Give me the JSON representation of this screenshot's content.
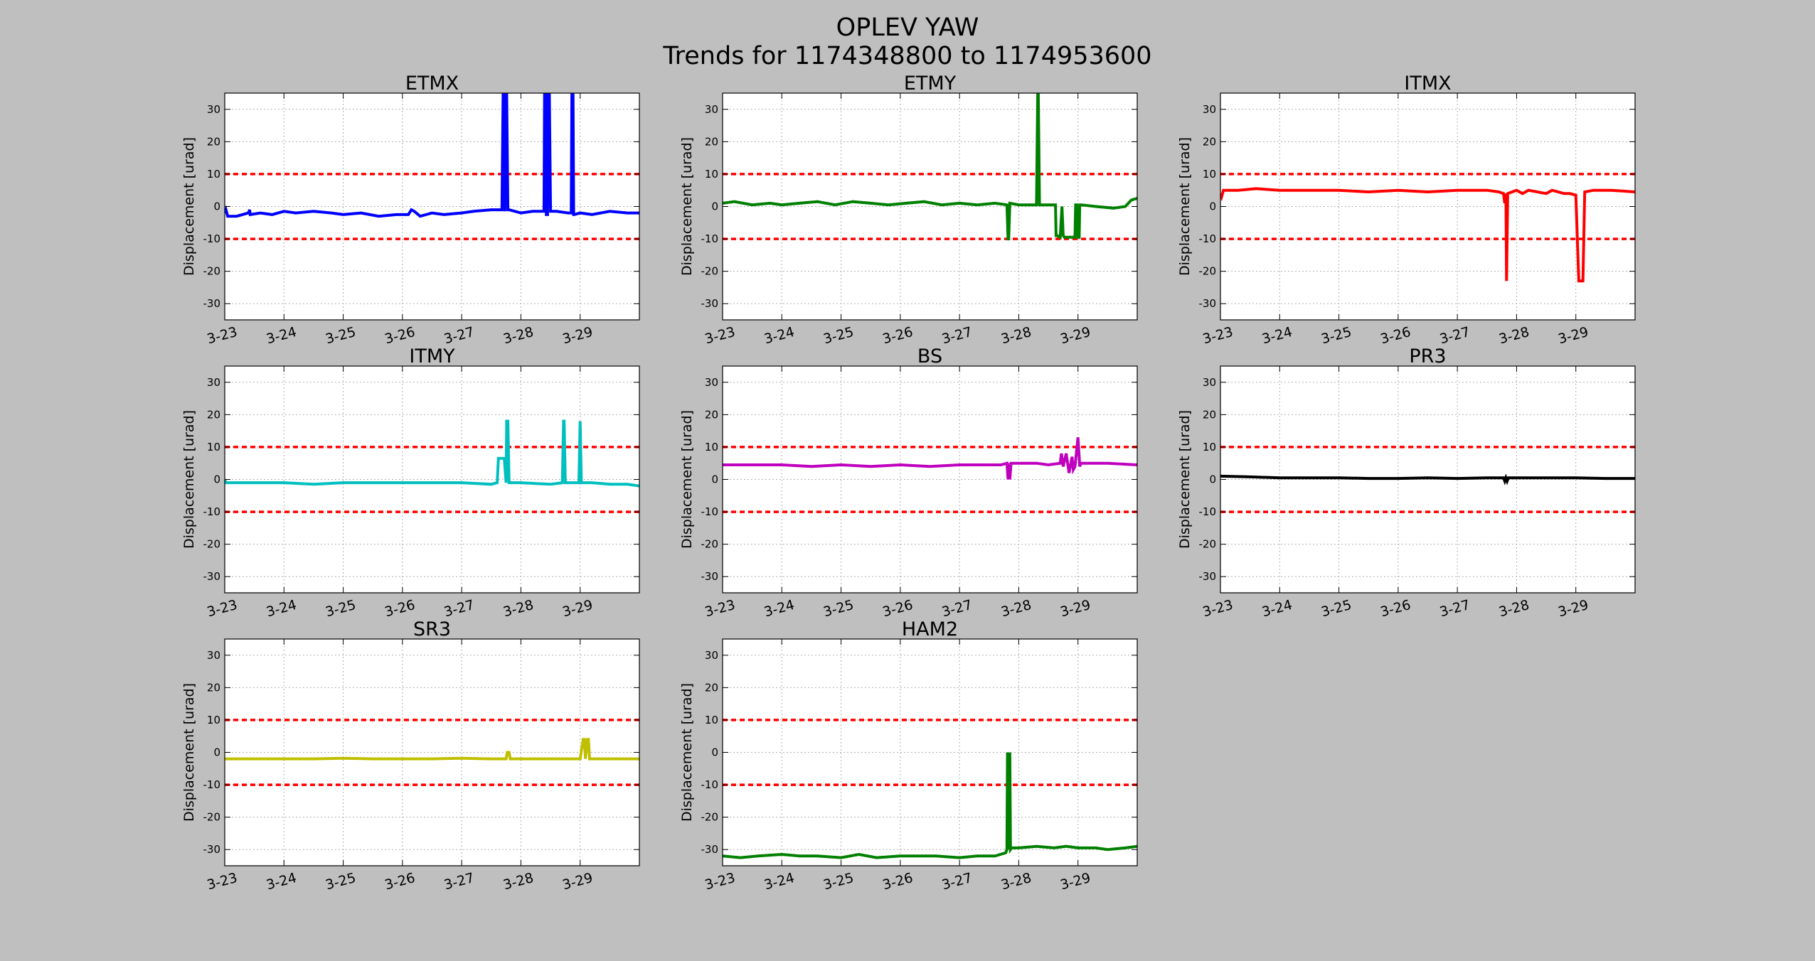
{
  "figure": {
    "title": "OPLEV YAW",
    "subtitle": "Trends for 1174348800 to 1174953600"
  },
  "chart_data": [
    {
      "type": "line",
      "title": "ETMX",
      "ylabel": "Displacement [urad]",
      "xlim": [
        0,
        7
      ],
      "ylim": [
        -35,
        35
      ],
      "yticks": [
        -30,
        -20,
        -10,
        0,
        10,
        20,
        30
      ],
      "xticks": [
        0,
        1,
        2,
        3,
        4,
        5,
        6
      ],
      "xticklabels": [
        "3-23",
        "3-24",
        "3-25",
        "3-26",
        "3-27",
        "3-28",
        "3-29"
      ],
      "grid": true,
      "thresholds": [
        10,
        -10
      ],
      "threshold_color": "#ff0000",
      "color": "#0000ff",
      "x": [
        0,
        0.02,
        0.05,
        0.2,
        0.4,
        0.42,
        0.43,
        0.6,
        0.8,
        1.0,
        1.2,
        1.5,
        1.8,
        2.0,
        2.3,
        2.6,
        2.9,
        3.1,
        3.15,
        3.2,
        3.3,
        3.5,
        3.7,
        4.0,
        4.2,
        4.5,
        4.68,
        4.7,
        4.71,
        4.73,
        4.74,
        4.76,
        4.78,
        4.8,
        5.0,
        5.2,
        5.39,
        5.4,
        5.42,
        5.43,
        5.45,
        5.46,
        5.48,
        5.5,
        5.6,
        5.8,
        5.85,
        5.86,
        5.88,
        5.89,
        5.9,
        6.0,
        6.2,
        6.5,
        6.8,
        7.0
      ],
      "y": [
        -2,
        -1,
        -3,
        -3,
        -2,
        -1,
        -2.5,
        -2,
        -2.5,
        -1.5,
        -2,
        -1.5,
        -2,
        -2.5,
        -2,
        -3,
        -2.5,
        -2.5,
        -1,
        -1.5,
        -3,
        -2,
        -2.5,
        -2,
        -1.5,
        -1,
        -1,
        35,
        35,
        -1.5,
        35,
        35,
        -1,
        -1,
        -2,
        -1.5,
        -1.5,
        35,
        35,
        -2.5,
        -2.5,
        35,
        35,
        -1.5,
        -1.5,
        -2,
        -2,
        35,
        35,
        -2.5,
        -2.5,
        -2,
        -2.5,
        -1.5,
        -2,
        -2
      ]
    },
    {
      "type": "line",
      "title": "ETMY",
      "ylabel": "Displacement [urad]",
      "xlim": [
        0,
        7
      ],
      "ylim": [
        -35,
        35
      ],
      "yticks": [
        -30,
        -20,
        -10,
        0,
        10,
        20,
        30
      ],
      "xticks": [
        0,
        1,
        2,
        3,
        4,
        5,
        6
      ],
      "xticklabels": [
        "3-23",
        "3-24",
        "3-25",
        "3-26",
        "3-27",
        "3-28",
        "3-29"
      ],
      "grid": true,
      "thresholds": [
        10,
        -10
      ],
      "threshold_color": "#ff0000",
      "color": "#008000",
      "x": [
        0,
        0.2,
        0.5,
        0.8,
        1.0,
        1.3,
        1.6,
        1.9,
        2.2,
        2.5,
        2.8,
        3.1,
        3.4,
        3.7,
        4.0,
        4.3,
        4.6,
        4.8,
        4.82,
        4.83,
        4.85,
        5.0,
        5.3,
        5.32,
        5.33,
        5.35,
        5.5,
        5.62,
        5.63,
        5.65,
        5.7,
        5.73,
        5.75,
        5.77,
        5.8,
        5.95,
        5.96,
        5.98,
        6.0,
        6.02,
        6.03,
        6.05,
        6.3,
        6.6,
        6.8,
        6.9,
        7.0
      ],
      "y": [
        1,
        1.5,
        0.5,
        1,
        0.5,
        1,
        1.5,
        0.5,
        1.5,
        1,
        0.5,
        1,
        1.5,
        0.5,
        1,
        0.5,
        1,
        0.5,
        -10,
        -10,
        1,
        0.5,
        0.5,
        35,
        35,
        0.5,
        0.5,
        0.5,
        -9,
        -9,
        -9.5,
        0,
        -9,
        -9.5,
        -9.5,
        -9.5,
        0.5,
        0.5,
        -9.5,
        -9.5,
        0.5,
        0.5,
        0,
        -0.5,
        0,
        2,
        2.5
      ]
    },
    {
      "type": "line",
      "title": "ITMX",
      "ylabel": "Displacement [urad]",
      "xlim": [
        0,
        7
      ],
      "ylim": [
        -35,
        35
      ],
      "yticks": [
        -30,
        -20,
        -10,
        0,
        10,
        20,
        30
      ],
      "xticks": [
        0,
        1,
        2,
        3,
        4,
        5,
        6
      ],
      "xticklabels": [
        "3-23",
        "3-24",
        "3-25",
        "3-26",
        "3-27",
        "3-28",
        "3-29"
      ],
      "grid": true,
      "thresholds": [
        10,
        -10
      ],
      "threshold_color": "#ff0000",
      "color": "#ff0000",
      "x": [
        0,
        0.02,
        0.05,
        0.3,
        0.6,
        1.0,
        1.5,
        2.0,
        2.5,
        3.0,
        3.5,
        4.0,
        4.5,
        4.7,
        4.78,
        4.8,
        4.82,
        4.83,
        4.85,
        5.0,
        5.1,
        5.2,
        5.5,
        5.6,
        5.8,
        5.9,
        6.0,
        6.05,
        6.08,
        6.1,
        6.12,
        6.15,
        6.3,
        6.6,
        7.0
      ],
      "y": [
        4,
        3,
        5,
        5,
        5.5,
        5,
        5,
        5,
        4.5,
        5,
        4.5,
        5,
        5,
        4.5,
        4,
        1,
        4,
        -23,
        4,
        5,
        4,
        5,
        4,
        5,
        4,
        4,
        3.5,
        -23,
        -23,
        -23,
        -23,
        4.5,
        5,
        5,
        4.5
      ]
    },
    {
      "type": "line",
      "title": "ITMY",
      "ylabel": "Displacement [urad]",
      "xlim": [
        0,
        7
      ],
      "ylim": [
        -35,
        35
      ],
      "yticks": [
        -30,
        -20,
        -10,
        0,
        10,
        20,
        30
      ],
      "xticks": [
        0,
        1,
        2,
        3,
        4,
        5,
        6
      ],
      "xticklabels": [
        "3-23",
        "3-24",
        "3-25",
        "3-26",
        "3-27",
        "3-28",
        "3-29"
      ],
      "grid": true,
      "thresholds": [
        10,
        -10
      ],
      "threshold_color": "#ff0000",
      "color": "#00bfbf",
      "x": [
        0,
        0.02,
        0.05,
        0.5,
        1.0,
        1.5,
        2.0,
        2.5,
        3.0,
        3.5,
        4.0,
        4.5,
        4.6,
        4.62,
        4.72,
        4.75,
        4.76,
        4.78,
        4.8,
        5.0,
        5.5,
        5.7,
        5.72,
        5.73,
        5.75,
        5.9,
        5.98,
        6.0,
        6.02,
        6.2,
        6.5,
        6.8,
        7.0
      ],
      "y": [
        0,
        -1,
        -1,
        -1,
        -1,
        -1.5,
        -1,
        -1,
        -1,
        -1,
        -1,
        -1.5,
        -1,
        6.5,
        6.5,
        -1,
        18,
        18,
        -1,
        -1,
        -1.5,
        -1,
        18,
        18,
        -1,
        -1,
        -1,
        18,
        -1,
        -1,
        -1.5,
        -1.5,
        -2
      ]
    },
    {
      "type": "line",
      "title": "BS",
      "ylabel": "Displacement [urad]",
      "xlim": [
        0,
        7
      ],
      "ylim": [
        -35,
        35
      ],
      "yticks": [
        -30,
        -20,
        -10,
        0,
        10,
        20,
        30
      ],
      "xticks": [
        0,
        1,
        2,
        3,
        4,
        5,
        6
      ],
      "xticklabels": [
        "3-23",
        "3-24",
        "3-25",
        "3-26",
        "3-27",
        "3-28",
        "3-29"
      ],
      "grid": true,
      "thresholds": [
        10,
        -10
      ],
      "threshold_color": "#ff0000",
      "color": "#bf00bf",
      "x": [
        0,
        0.5,
        1.0,
        1.5,
        2.0,
        2.5,
        3.0,
        3.5,
        4.0,
        4.5,
        4.7,
        4.8,
        4.82,
        4.83,
        4.85,
        4.87,
        5.0,
        5.3,
        5.5,
        5.7,
        5.72,
        5.75,
        5.8,
        5.85,
        5.9,
        5.92,
        5.95,
        6.0,
        6.03,
        6.05,
        6.2,
        6.5,
        7.0
      ],
      "y": [
        4.5,
        4.5,
        4.5,
        4,
        4.5,
        4,
        4.5,
        4,
        4.5,
        4.5,
        4.5,
        5,
        0,
        5,
        0,
        5,
        5,
        5,
        4.5,
        5,
        8,
        4,
        8,
        2,
        7,
        3,
        4,
        13,
        4,
        5,
        5,
        5,
        4.5
      ]
    },
    {
      "type": "line",
      "title": "PR3",
      "ylabel": "Displacement [urad]",
      "xlim": [
        0,
        7
      ],
      "ylim": [
        -35,
        35
      ],
      "yticks": [
        -30,
        -20,
        -10,
        0,
        10,
        20,
        30
      ],
      "xticks": [
        0,
        1,
        2,
        3,
        4,
        5,
        6
      ],
      "xticklabels": [
        "3-23",
        "3-24",
        "3-25",
        "3-26",
        "3-27",
        "3-28",
        "3-29"
      ],
      "grid": true,
      "thresholds": [
        10,
        -10
      ],
      "threshold_color": "#ff0000",
      "color": "#000000",
      "x": [
        0,
        0.5,
        1.0,
        1.5,
        2.0,
        2.5,
        3.0,
        3.5,
        4.0,
        4.5,
        4.78,
        4.8,
        4.82,
        4.84,
        4.86,
        5.0,
        5.5,
        6.0,
        6.5,
        7.0
      ],
      "y": [
        1,
        0.8,
        0.5,
        0.5,
        0.5,
        0.3,
        0.3,
        0.5,
        0.3,
        0.5,
        0.5,
        -0.5,
        0.5,
        -0.5,
        0.5,
        0.5,
        0.5,
        0.5,
        0.3,
        0.3
      ]
    },
    {
      "type": "line",
      "title": "SR3",
      "ylabel": "Displacement [urad]",
      "xlim": [
        0,
        7
      ],
      "ylim": [
        -35,
        35
      ],
      "yticks": [
        -30,
        -20,
        -10,
        0,
        10,
        20,
        30
      ],
      "xticks": [
        0,
        1,
        2,
        3,
        4,
        5,
        6
      ],
      "xticklabels": [
        "3-23",
        "3-24",
        "3-25",
        "3-26",
        "3-27",
        "3-28",
        "3-29"
      ],
      "grid": true,
      "thresholds": [
        10,
        -10
      ],
      "threshold_color": "#ff0000",
      "color": "#bfbf00",
      "x": [
        0,
        0.5,
        1.0,
        1.5,
        2.0,
        2.5,
        3.0,
        3.5,
        4.0,
        4.5,
        4.75,
        4.77,
        4.79,
        4.8,
        4.82,
        5.0,
        5.5,
        6.0,
        6.05,
        6.07,
        6.09,
        6.12,
        6.14,
        6.16,
        6.5,
        7.0
      ],
      "y": [
        -2,
        -2,
        -2,
        -2,
        -1.8,
        -2,
        -2,
        -2,
        -1.8,
        -2,
        -2,
        0,
        0,
        0,
        -2,
        -2,
        -2,
        -2,
        4,
        4,
        -2,
        4,
        4,
        -2,
        -2,
        -2
      ]
    },
    {
      "type": "line",
      "title": "HAM2",
      "ylabel": "Displacement [urad]",
      "xlim": [
        0,
        7
      ],
      "ylim": [
        -35,
        35
      ],
      "yticks": [
        -30,
        -20,
        -10,
        0,
        10,
        20,
        30
      ],
      "xticks": [
        0,
        1,
        2,
        3,
        4,
        5,
        6
      ],
      "xticklabels": [
        "3-23",
        "3-24",
        "3-25",
        "3-26",
        "3-27",
        "3-28",
        "3-29"
      ],
      "grid": true,
      "thresholds": [
        10,
        -10
      ],
      "threshold_color": "#ff0000",
      "color": "#008000",
      "x": [
        0,
        0.3,
        0.6,
        1.0,
        1.3,
        1.6,
        2.0,
        2.3,
        2.6,
        3.0,
        3.3,
        3.6,
        4.0,
        4.3,
        4.6,
        4.78,
        4.8,
        4.81,
        4.83,
        4.85,
        4.86,
        4.88,
        5.0,
        5.3,
        5.6,
        5.8,
        6.0,
        6.3,
        6.5,
        6.8,
        7.0
      ],
      "y": [
        -32,
        -32.5,
        -32,
        -31.5,
        -32,
        -32,
        -32.5,
        -31.5,
        -32.5,
        -32,
        -32,
        -32,
        -32.5,
        -32,
        -32,
        -31,
        -30,
        0,
        -30,
        0,
        -30,
        -29.5,
        -29.5,
        -29,
        -29.5,
        -29,
        -29.5,
        -29.5,
        -30,
        -29.5,
        -29
      ]
    }
  ]
}
